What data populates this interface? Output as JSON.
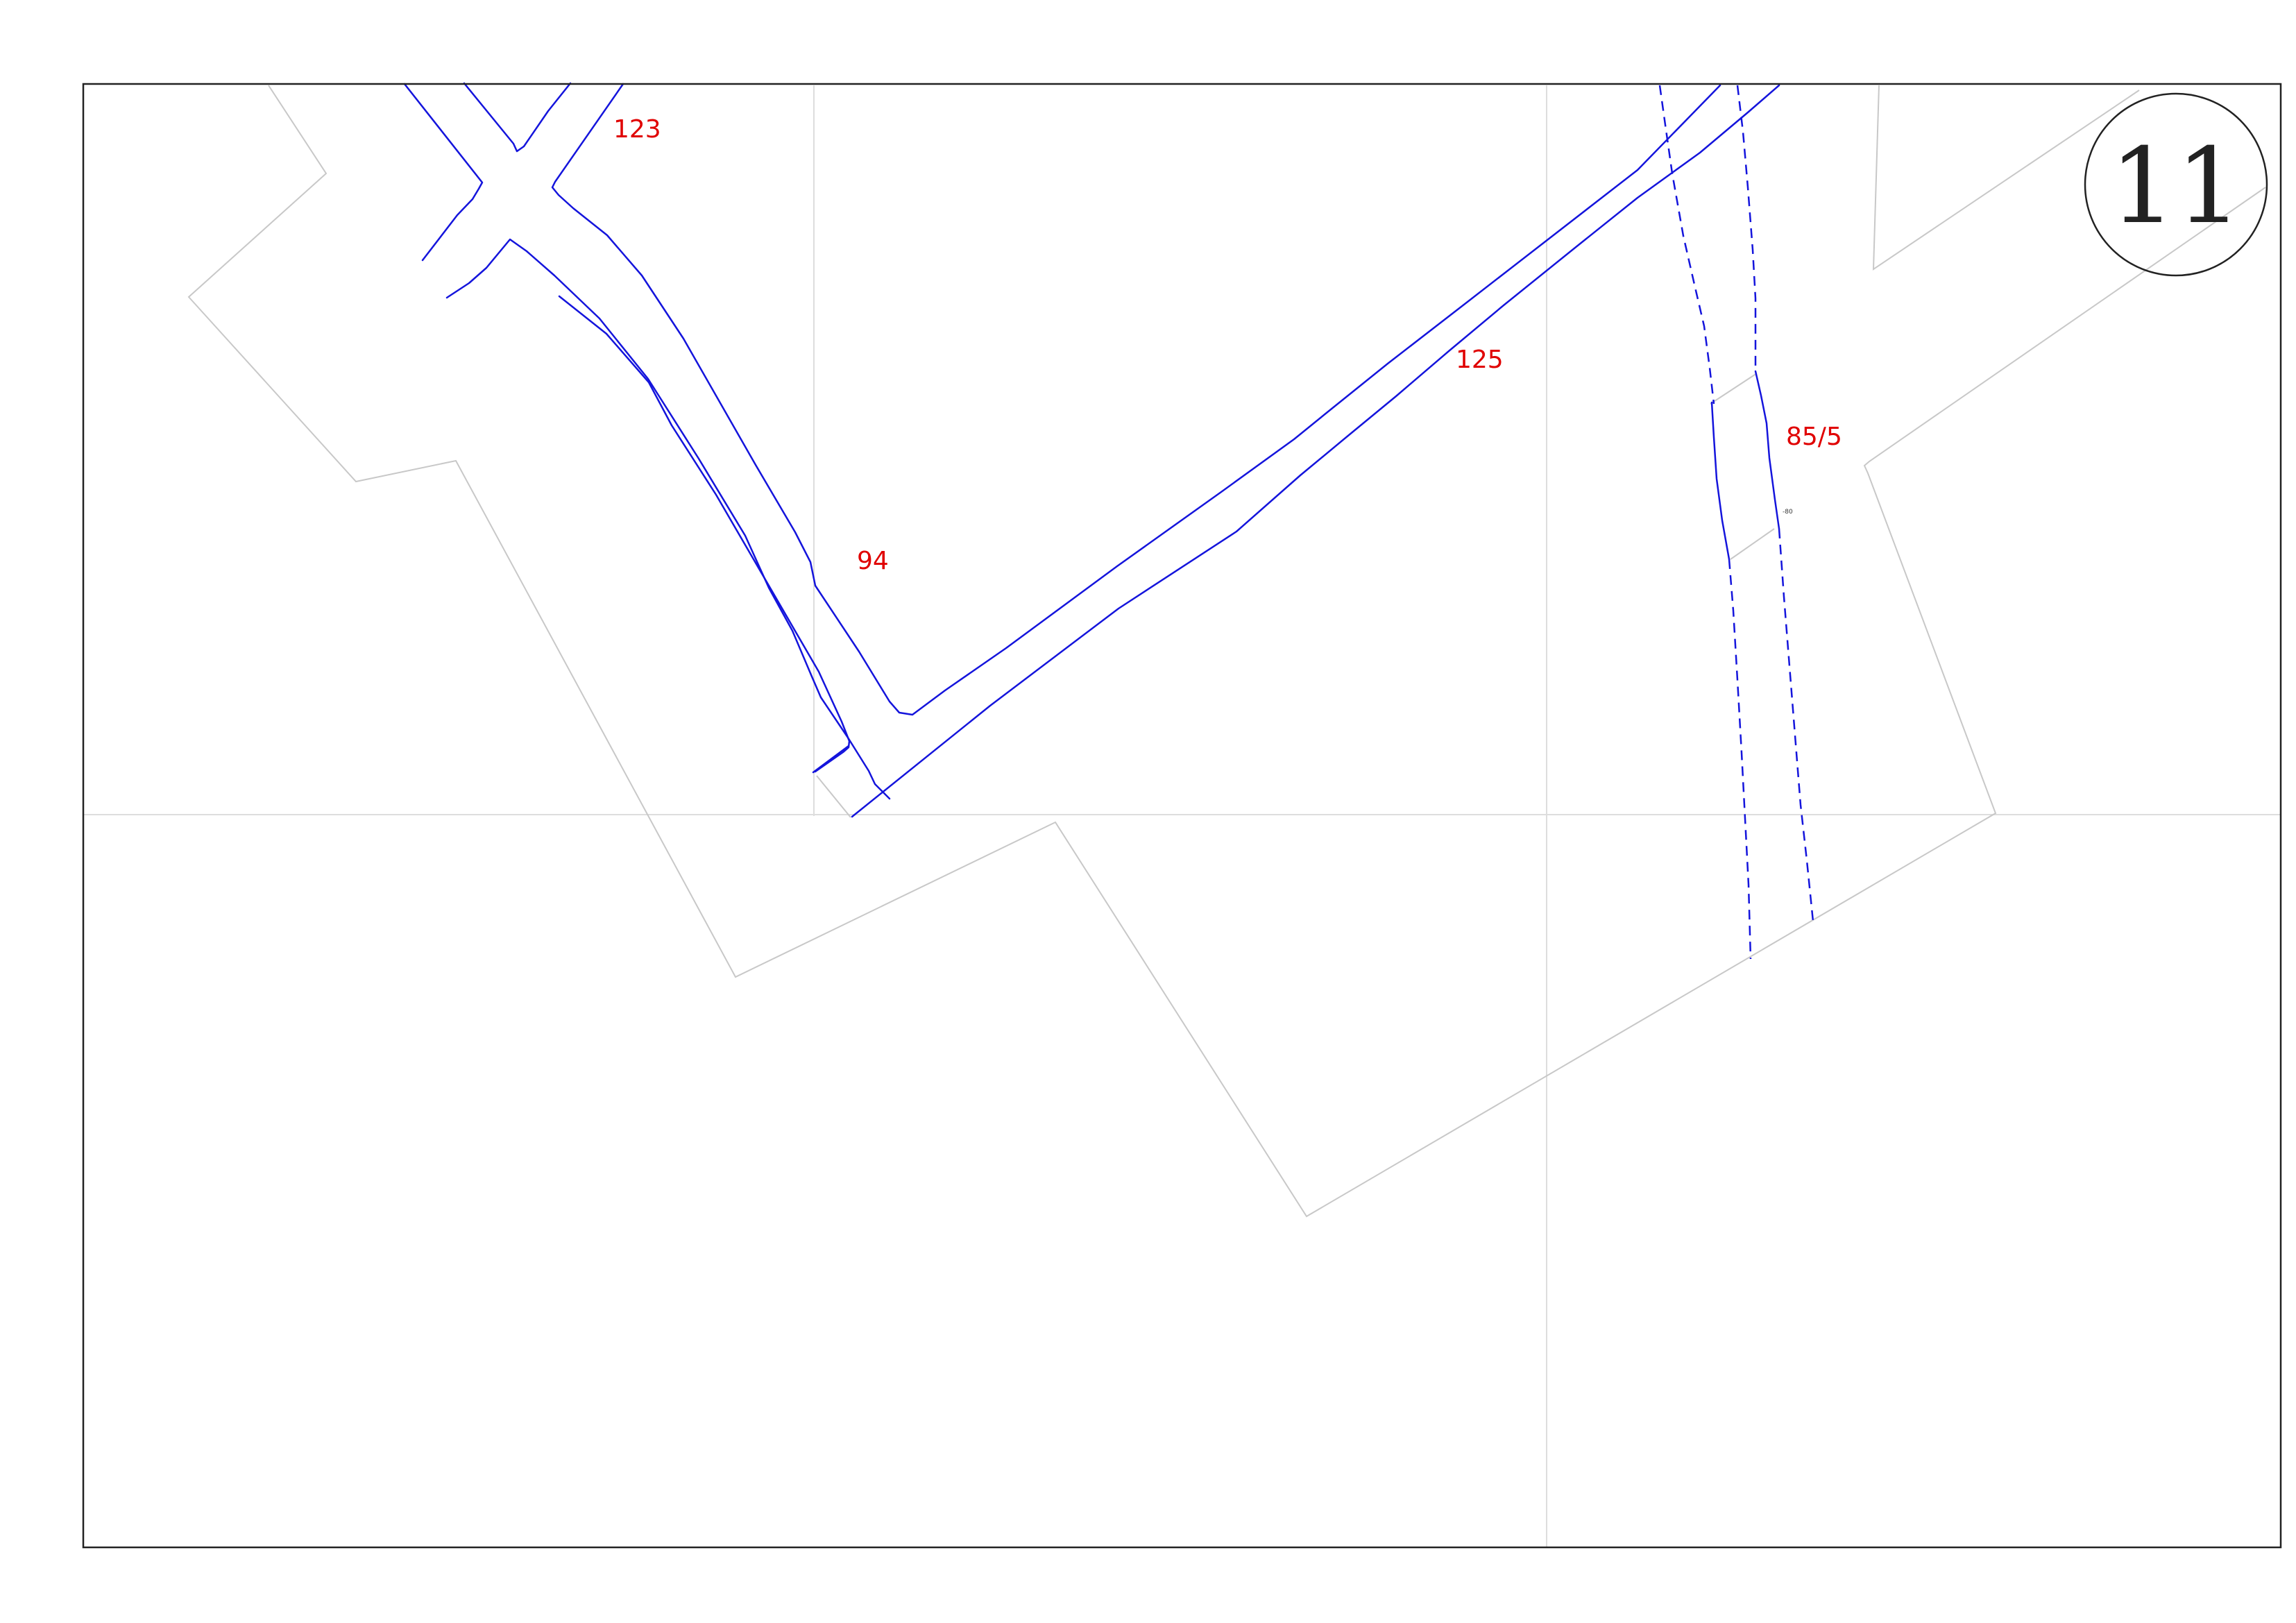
{
  "sheet": {
    "number": "11"
  },
  "parcels": [
    {
      "id": "parcel-123",
      "label": "123"
    },
    {
      "id": "parcel-125",
      "label": "125"
    },
    {
      "id": "parcel-94",
      "label": "94"
    },
    {
      "id": "parcel-85-5",
      "label": "85/5"
    }
  ],
  "small_marker": {
    "label": "-80"
  },
  "colors": {
    "frame": "#222222",
    "road": "#1414dc",
    "boundary": "#c8c8c8",
    "grid": "#dddddd",
    "parcel_label": "#e00000"
  }
}
